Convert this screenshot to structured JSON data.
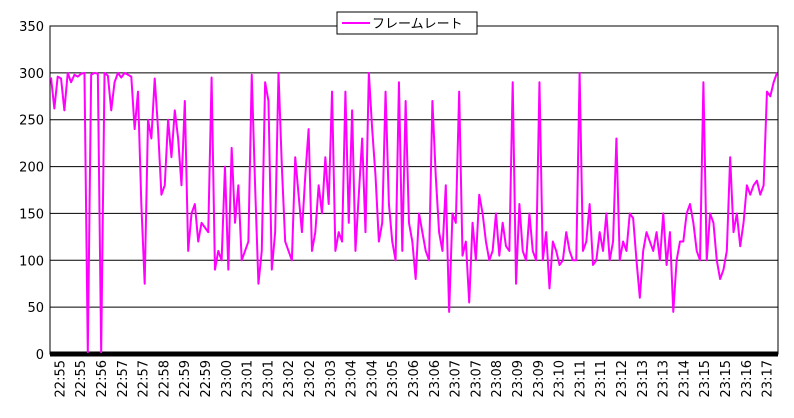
{
  "chart_data": {
    "type": "line",
    "title": "",
    "xlabel": "",
    "ylabel": "",
    "ylim": [
      0,
      350
    ],
    "y_ticks": [
      0,
      50,
      100,
      150,
      200,
      250,
      300,
      350
    ],
    "grid": "horizontal",
    "legend_position": "top",
    "x_tick_labels": [
      "22:55",
      "22:55",
      "22:56",
      "22:57",
      "22:57",
      "22:58",
      "22:59",
      "22:59",
      "23:00",
      "23:01",
      "23:01",
      "23:02",
      "23:02",
      "23:03",
      "23:04",
      "23:04",
      "23:05",
      "23:06",
      "23:06",
      "23:07",
      "23:07",
      "23:08",
      "23:09",
      "23:09",
      "23:10",
      "23:11",
      "23:11",
      "23:12",
      "23:13",
      "23:13",
      "23:14",
      "23:15",
      "23:15",
      "23:16",
      "23:17"
    ],
    "series": [
      {
        "name": "フレームレート",
        "color": "#FF00FF",
        "values": [
          295,
          262,
          296,
          294,
          260,
          300,
          290,
          298,
          296,
          299,
          300,
          2,
          298,
          300,
          299,
          2,
          300,
          297,
          260,
          290,
          300,
          295,
          300,
          298,
          296,
          240,
          280,
          160,
          75,
          250,
          230,
          294,
          240,
          170,
          180,
          250,
          210,
          260,
          230,
          180,
          270,
          110,
          150,
          160,
          120,
          140,
          135,
          130,
          295,
          90,
          110,
          100,
          200,
          90,
          220,
          140,
          180,
          100,
          110,
          120,
          298,
          180,
          75,
          110,
          290,
          270,
          90,
          130,
          300,
          200,
          120,
          110,
          100,
          210,
          170,
          130,
          190,
          240,
          110,
          130,
          180,
          150,
          210,
          160,
          280,
          110,
          130,
          120,
          280,
          140,
          260,
          110,
          170,
          230,
          130,
          300,
          240,
          190,
          120,
          140,
          280,
          160,
          120,
          100,
          290,
          110,
          270,
          140,
          120,
          80,
          150,
          130,
          110,
          100,
          270,
          190,
          130,
          110,
          180,
          45,
          150,
          140,
          280,
          105,
          120,
          55,
          140,
          100,
          170,
          150,
          120,
          100,
          110,
          150,
          105,
          140,
          115,
          110,
          290,
          75,
          160,
          110,
          100,
          150,
          110,
          100,
          290,
          100,
          130,
          70,
          120,
          110,
          95,
          100,
          130,
          110,
          100,
          100,
          300,
          110,
          120,
          160,
          95,
          100,
          130,
          110,
          150,
          100,
          120,
          230,
          100,
          120,
          110,
          150,
          145,
          100,
          60,
          110,
          130,
          120,
          110,
          130,
          100,
          150,
          95,
          130,
          45,
          100,
          120,
          120,
          150,
          160,
          140,
          110,
          100,
          290,
          100,
          150,
          140,
          100,
          80,
          90,
          110,
          210,
          130,
          150,
          115,
          140,
          180,
          170,
          180,
          185,
          170,
          180,
          280,
          275,
          290,
          300
        ]
      }
    ]
  }
}
